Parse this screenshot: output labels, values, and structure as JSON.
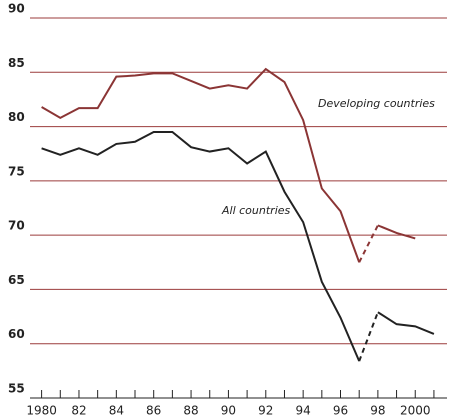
{
  "chart_data": {
    "type": "line",
    "x": [
      1980,
      1981,
      1982,
      1983,
      1984,
      1985,
      1986,
      1987,
      1988,
      1989,
      1990,
      1991,
      1992,
      1993,
      1994,
      1995,
      1996,
      1997,
      1998,
      1999,
      2000,
      2001
    ],
    "series": [
      {
        "name": "Developing countries",
        "color": "#8b3535",
        "values": [
          81.8,
          80.8,
          81.7,
          81.7,
          84.6,
          84.7,
          84.9,
          84.9,
          84.2,
          83.5,
          83.8,
          83.5,
          85.3,
          84.1,
          80.6,
          74.3,
          72.2,
          67.5,
          70.9,
          70.2,
          69.7,
          null
        ]
      },
      {
        "name": "All countries",
        "color": "#222222",
        "values": [
          78.0,
          77.4,
          78.0,
          77.4,
          78.4,
          78.6,
          79.5,
          79.5,
          78.1,
          77.7,
          78.0,
          76.6,
          77.7,
          74.0,
          71.2,
          65.7,
          62.4,
          58.4,
          62.9,
          61.8,
          61.6,
          60.9
        ]
      }
    ],
    "dashed_range": [
      1997,
      1998
    ],
    "ylim": [
      55,
      90
    ],
    "yticks": [
      55,
      60,
      65,
      70,
      75,
      80,
      85,
      90
    ],
    "xlim": [
      1979.7,
      2001.7
    ],
    "xticks": [
      {
        "value": 1980,
        "label": "1980"
      },
      {
        "value": 1982,
        "label": "82"
      },
      {
        "value": 1984,
        "label": "84"
      },
      {
        "value": 1986,
        "label": "86"
      },
      {
        "value": 1988,
        "label": "88"
      },
      {
        "value": 1990,
        "label": "90"
      },
      {
        "value": 1992,
        "label": "92"
      },
      {
        "value": 1994,
        "label": "94"
      },
      {
        "value": 1996,
        "label": "96"
      },
      {
        "value": 1998,
        "label": "98"
      },
      {
        "value": 2000,
        "label": "2000"
      }
    ],
    "grid": true,
    "grid_color": "#9b3b3b"
  }
}
